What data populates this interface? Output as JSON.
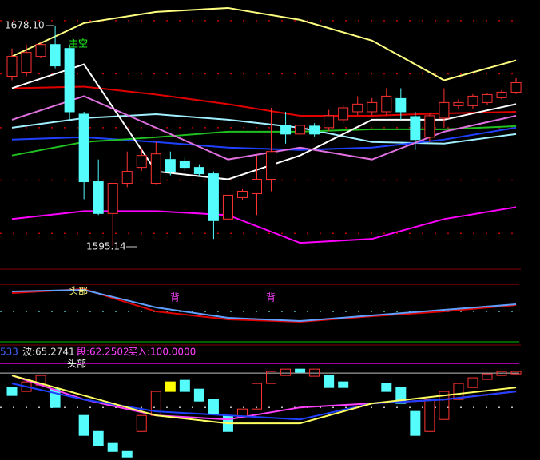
{
  "chart_data": [
    {
      "type": "candlestick",
      "ylim": [
        1587,
        1688
      ],
      "up_color": "#ff3232",
      "down_color": "#54fcfc",
      "annotations": [
        "1678.10",
        "1595.14",
        "主空"
      ],
      "hlines": [
        {
          "value": 1680.2,
          "color": "#c00000",
          "dash": true
        },
        {
          "value": 1660.1,
          "color": "#c00000",
          "dash": true
        },
        {
          "value": 1639.8,
          "color": "#c00000",
          "dash": true
        },
        {
          "value": 1620.0,
          "color": "#c00000",
          "dash": true
        },
        {
          "value": 1599.9,
          "color": "#c00000",
          "dash": true
        }
      ],
      "candles": {
        "open": [
          1659.2,
          1660.7,
          1666.7,
          1671.2,
          1669.7,
          1644.9,
          1619.4,
          1607.4,
          1618.8,
          1624.8,
          1618.8,
          1627.8,
          1627.2,
          1624.8,
          1622.4,
          1605.3,
          1613.4,
          1614.9,
          1620.3,
          1640.7,
          1637.4,
          1640.4,
          1639.8,
          1642.8,
          1645.8,
          1645.8,
          1645.8,
          1650.8,
          1644.0,
          1636.2,
          1643.4,
          1648.1,
          1648.1,
          1649.3,
          1651.1,
          1653.2
        ],
        "high": [
          1669.7,
          1671.2,
          1672.0,
          1678.1,
          1671.2,
          1645.8,
          1627.8,
          1618.8,
          1630.8,
          1632.3,
          1634.4,
          1630.8,
          1628.5,
          1626.0,
          1623.3,
          1618.8,
          1616.5,
          1629.3,
          1647.3,
          1645.8,
          1641.5,
          1641.5,
          1646.5,
          1648.5,
          1651.7,
          1651.0,
          1654.7,
          1654.7,
          1645.8,
          1645.5,
          1654.7,
          1650.5,
          1652.5,
          1653.0,
          1654.0,
          1658.5
        ],
        "low": [
          1657.7,
          1659.2,
          1666.0,
          1662.2,
          1642.8,
          1612.8,
          1606.8,
          1595.14,
          1617.3,
          1623.5,
          1618.2,
          1621.8,
          1623.5,
          1621.5,
          1597.8,
          1603.8,
          1612.5,
          1606.8,
          1615.8,
          1633.8,
          1636.5,
          1636.5,
          1638.5,
          1641.5,
          1644.5,
          1644.5,
          1644.5,
          1642.8,
          1631.4,
          1634.5,
          1639.8,
          1647.0,
          1647.0,
          1648.5,
          1650.5,
          1652.5
        ],
        "close": [
          1666.7,
          1668.2,
          1671.2,
          1663.1,
          1645.8,
          1619.4,
          1607.4,
          1618.8,
          1623.3,
          1629.3,
          1629.9,
          1623.3,
          1624.8,
          1622.4,
          1604.7,
          1614.3,
          1615.8,
          1620.3,
          1630.8,
          1637.4,
          1640.7,
          1637.4,
          1644.3,
          1647.3,
          1648.7,
          1649.3,
          1651.7,
          1645.8,
          1635.3,
          1644.3,
          1649.3,
          1649.3,
          1651.7,
          1652.3,
          1653.2,
          1656.8
        ]
      },
      "series": [
        {
          "color": "#ffff80",
          "x": [
            0,
            5,
            10,
            15,
            20,
            25,
            30,
            35
          ],
          "values": [
            1666.7,
            1679.3,
            1683.5,
            1685.0,
            1680.5,
            1672.7,
            1657.7,
            1665.2
          ]
        },
        {
          "color": "#ff00ff",
          "x": [
            0,
            5,
            10,
            15,
            20,
            25,
            30,
            35
          ],
          "values": [
            1605.3,
            1608.3,
            1608.3,
            1606.8,
            1596.3,
            1597.8,
            1605.3,
            1609.8
          ]
        },
        {
          "color": "#e00000",
          "x": [
            0,
            5,
            10,
            15,
            20,
            25,
            30,
            35
          ],
          "values": [
            1654.7,
            1655.3,
            1652.3,
            1648.7,
            1644.3,
            1644.3,
            1645.2,
            1645.8
          ]
        },
        {
          "color": "#a0f0ff",
          "x": [
            0,
            5,
            10,
            15,
            20,
            25,
            30,
            35
          ],
          "values": [
            1639.8,
            1643.4,
            1644.9,
            1642.8,
            1639.8,
            1634.4,
            1633.8,
            1637.4
          ]
        },
        {
          "color": "#2040ff",
          "x": [
            0,
            5,
            10,
            15,
            20,
            25,
            30,
            35
          ],
          "values": [
            1635.3,
            1636.2,
            1634.4,
            1632.3,
            1631.4,
            1632.3,
            1635.3,
            1639.8
          ]
        },
        {
          "color": "#20c020",
          "x": [
            0,
            5,
            10,
            15,
            20,
            25,
            30,
            35
          ],
          "values": [
            1629.3,
            1634.4,
            1636.2,
            1638.3,
            1638.3,
            1639.2,
            1639.2,
            1640.4
          ]
        },
        {
          "color": "#ffffff",
          "x": [
            0,
            5,
            10,
            15,
            20,
            25,
            30,
            35
          ],
          "values": [
            1654.7,
            1663.7,
            1623.3,
            1620.3,
            1629.3,
            1642.8,
            1642.8,
            1648.7
          ]
        },
        {
          "color": "#e070e0",
          "x": [
            0,
            5,
            10,
            15,
            20,
            25,
            30,
            35
          ],
          "values": [
            1642.8,
            1651.7,
            1639.8,
            1627.8,
            1632.3,
            1627.8,
            1638.3,
            1644.3
          ]
        }
      ]
    },
    {
      "type": "line",
      "ylim": [
        0,
        100
      ],
      "annotations": [
        "头部",
        "背",
        "背"
      ],
      "hlines": [
        {
          "value": 82.2,
          "color": "#c00000",
          "dash": false
        },
        {
          "value": 44.4,
          "color": "#60c0c0",
          "dash": true
        },
        {
          "value": 2.2,
          "color": "#00c000",
          "dash": false
        }
      ],
      "series": [
        {
          "color": "#e00000",
          "x": [
            0,
            5,
            10,
            15,
            20,
            25,
            30,
            35
          ],
          "values": [
            70.0,
            75.6,
            44.4,
            33.3,
            30.0,
            37.8,
            44.4,
            53.3
          ]
        },
        {
          "color": "#60a0ff",
          "x": [
            0,
            5,
            10,
            15,
            20,
            25,
            30,
            35
          ],
          "values": [
            72.2,
            74.4,
            50.0,
            35.6,
            31.1,
            38.9,
            46.7,
            54.4
          ]
        }
      ]
    },
    {
      "type": "block",
      "ylim": [
        -15,
        110
      ],
      "header": [
        "533",
        "波:65.2741",
        "段:62.2502",
        "买入:100.0000"
      ],
      "annotations": [
        "头部"
      ],
      "hlines": [
        {
          "value": 100,
          "color": "#ff00ff",
          "dash": false
        },
        {
          "value": 88.6,
          "color": "#c0c0c0",
          "dash": false
        },
        {
          "value": 47.6,
          "color": "#c0c0c0",
          "dash": true
        }
      ],
      "blocks": [
        {
          "x": 0,
          "top": 71.4,
          "bottom": 61.9,
          "color": "#54fcfc",
          "filled": true
        },
        {
          "x": 1,
          "top": 78.1,
          "bottom": 66.7,
          "color": "#ff3232",
          "filled": false
        },
        {
          "x": 2,
          "top": 85.7,
          "bottom": 74.3,
          "color": "#ff3232",
          "filled": false
        },
        {
          "x": 3,
          "top": 69.5,
          "bottom": 47.6,
          "color": "#54fcfc",
          "filled": true
        },
        {
          "x": 5,
          "top": 38.1,
          "bottom": 14.3,
          "color": "#54fcfc",
          "filled": true
        },
        {
          "x": 6,
          "top": 19.0,
          "bottom": 1.9,
          "color": "#54fcfc",
          "filled": true
        },
        {
          "x": 7,
          "top": 4.8,
          "bottom": -4.8,
          "color": "#54fcfc",
          "filled": true
        },
        {
          "x": 8,
          "top": -4.8,
          "bottom": -11.4,
          "color": "#54fcfc",
          "filled": true
        },
        {
          "x": 9,
          "top": 38.1,
          "bottom": 19.0,
          "color": "#ff3232",
          "filled": false
        },
        {
          "x": 10,
          "top": 66.7,
          "bottom": 38.1,
          "color": "#ff3232",
          "filled": false
        },
        {
          "x": 11,
          "top": 78.1,
          "bottom": 66.7,
          "color": "#ffff00",
          "filled": true
        },
        {
          "x": 12,
          "top": 80.0,
          "bottom": 66.7,
          "color": "#54fcfc",
          "filled": true
        },
        {
          "x": 13,
          "top": 69.5,
          "bottom": 55.2,
          "color": "#54fcfc",
          "filled": true
        },
        {
          "x": 14,
          "top": 57.1,
          "bottom": 40.0,
          "color": "#54fcfc",
          "filled": true
        },
        {
          "x": 15,
          "top": 38.1,
          "bottom": 19.0,
          "color": "#54fcfc",
          "filled": true
        },
        {
          "x": 16,
          "top": 45.7,
          "bottom": 36.2,
          "color": "#ff3232",
          "filled": false
        },
        {
          "x": 17,
          "top": 76.2,
          "bottom": 45.7,
          "color": "#ff3232",
          "filled": false
        },
        {
          "x": 18,
          "top": 90.5,
          "bottom": 76.2,
          "color": "#ff3232",
          "filled": false
        },
        {
          "x": 19,
          "top": 93.3,
          "bottom": 85.7,
          "color": "#ff3232",
          "filled": false
        },
        {
          "x": 20,
          "top": 93.3,
          "bottom": 89.5,
          "color": "#54fcfc",
          "filled": true
        },
        {
          "x": 21,
          "top": 93.3,
          "bottom": 84.8,
          "color": "#ff3232",
          "filled": false
        },
        {
          "x": 22,
          "top": 85.7,
          "bottom": 71.4,
          "color": "#54fcfc",
          "filled": true
        },
        {
          "x": 23,
          "top": 78.1,
          "bottom": 71.4,
          "color": "#54fcfc",
          "filled": true
        },
        {
          "x": 26,
          "top": 76.2,
          "bottom": 66.7,
          "color": "#54fcfc",
          "filled": true
        },
        {
          "x": 27,
          "top": 71.4,
          "bottom": 52.4,
          "color": "#54fcfc",
          "filled": true
        },
        {
          "x": 28,
          "top": 42.9,
          "bottom": 14.3,
          "color": "#54fcfc",
          "filled": true
        },
        {
          "x": 29,
          "top": 57.1,
          "bottom": 19.0,
          "color": "#ff3232",
          "filled": false
        },
        {
          "x": 30,
          "top": 66.7,
          "bottom": 33.3,
          "color": "#ff3232",
          "filled": false
        },
        {
          "x": 31,
          "top": 76.2,
          "bottom": 57.1,
          "color": "#ff3232",
          "filled": false
        },
        {
          "x": 32,
          "top": 82.9,
          "bottom": 71.4,
          "color": "#ff3232",
          "filled": false
        },
        {
          "x": 33,
          "top": 87.6,
          "bottom": 81.0,
          "color": "#ff3232",
          "filled": false
        },
        {
          "x": 34,
          "top": 90.5,
          "bottom": 85.7,
          "color": "#ff3232",
          "filled": false
        },
        {
          "x": 35,
          "top": 90.5,
          "bottom": 87.6,
          "color": "#ff3232",
          "filled": false
        }
      ],
      "series": [
        {
          "color": "#ff40ff",
          "x": [
            0,
            5,
            10,
            15,
            20,
            25,
            30,
            35
          ],
          "values": [
            85.7,
            57.1,
            38.1,
            33.3,
            47.6,
            52.4,
            57.1,
            66.7
          ]
        },
        {
          "color": "#2040ff",
          "x": [
            0,
            5,
            10,
            15,
            20,
            25,
            30,
            35
          ],
          "values": [
            76.2,
            57.1,
            42.9,
            38.1,
            33.3,
            52.4,
            57.1,
            66.7
          ]
        },
        {
          "color": "#ffff60",
          "x": [
            0,
            5,
            10,
            15,
            20,
            25,
            30,
            35
          ],
          "values": [
            85.7,
            61.9,
            38.1,
            28.6,
            28.6,
            52.4,
            61.9,
            71.4
          ]
        }
      ]
    }
  ]
}
